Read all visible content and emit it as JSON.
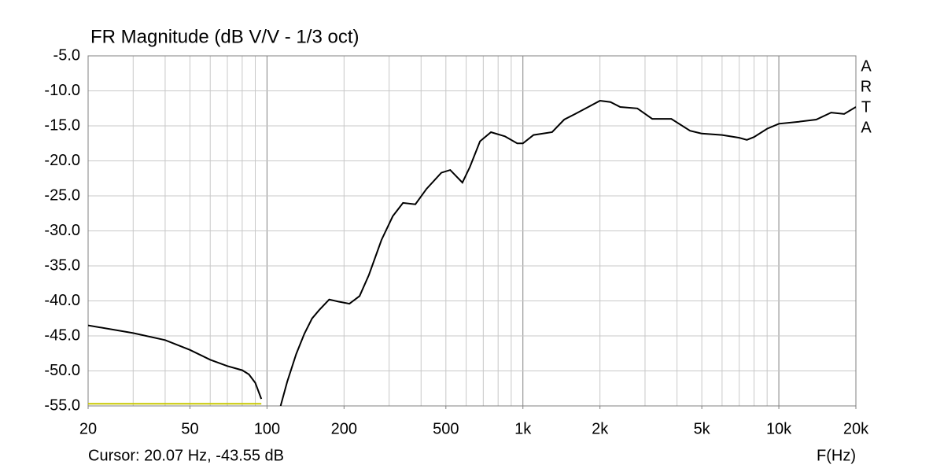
{
  "chart_data": {
    "type": "line",
    "title": "FR Magnitude (dB V/V - 1/3 oct)",
    "x_label": "F(Hz)",
    "annotation": "Cursor: 20.07 Hz, -43.55 dB",
    "side_label": [
      "A",
      "R",
      "T",
      "A"
    ],
    "x_scale": "log",
    "grid": true,
    "x": [
      20,
      30,
      40,
      50,
      60,
      70,
      80,
      85,
      90,
      95,
      100,
      113,
      120,
      130,
      140,
      150,
      160,
      175,
      190,
      210,
      230,
      250,
      280,
      310,
      340,
      380,
      420,
      480,
      520,
      580,
      620,
      680,
      750,
      850,
      950,
      1000,
      1100,
      1300,
      1450,
      1600,
      1800,
      2000,
      2200,
      2400,
      2800,
      3200,
      3800,
      4500,
      5000,
      6000,
      7000,
      7500,
      8000,
      9000,
      10000,
      12000,
      14000,
      16000,
      18000,
      20000
    ],
    "series": [
      {
        "color": "#000000",
        "values": [
          -43.5,
          -44.6,
          -45.6,
          -47.0,
          -48.4,
          -49.3,
          -49.9,
          -50.5,
          -51.7,
          -54.0,
          null,
          -55.0,
          -51.5,
          -47.6,
          -44.7,
          -42.5,
          -41.3,
          -39.8,
          -40.1,
          -40.4,
          -39.3,
          -36.3,
          -31.3,
          -27.9,
          -26.0,
          -26.2,
          -24.0,
          -21.7,
          -21.3,
          -23.1,
          -20.9,
          -17.2,
          -15.9,
          -16.5,
          -17.5,
          -17.5,
          -16.3,
          -15.9,
          -14.1,
          -13.3,
          -12.3,
          -11.4,
          -11.6,
          -12.3,
          -12.5,
          -14.0,
          -14.0,
          -15.7,
          -16.1,
          -16.3,
          -16.7,
          -17.0,
          -16.6,
          -15.4,
          -14.7,
          -14.4,
          -14.1,
          -13.1,
          -13.3,
          -12.3
        ]
      },
      {
        "color": "#c8c800",
        "values": [
          -54.7,
          -54.7,
          -54.7,
          -54.7,
          -54.7,
          -54.7,
          -54.7,
          -54.7,
          -54.7,
          -54.7,
          null,
          null,
          null,
          null,
          null,
          null,
          null,
          null,
          null,
          null,
          null,
          null,
          null,
          null,
          null,
          null,
          null,
          null,
          null,
          null,
          null,
          null,
          null,
          null,
          null,
          null,
          null,
          null,
          null,
          null,
          null,
          null,
          null,
          null,
          null,
          null,
          null,
          null,
          null,
          null,
          null,
          null,
          null,
          null,
          null,
          null,
          null,
          null,
          null,
          null
        ]
      }
    ],
    "xlim": [
      20,
      20000
    ],
    "xticks": [
      20,
      50,
      100,
      200,
      500,
      {
        "value": 1000,
        "label": "1k"
      },
      {
        "value": 2000,
        "label": "2k"
      },
      {
        "value": 5000,
        "label": "5k"
      },
      {
        "value": 10000,
        "label": "10k"
      },
      {
        "value": 20000,
        "label": "20k"
      }
    ],
    "ylim": [
      -55,
      -5
    ],
    "yticks": [
      {
        "value": -55,
        "label": "-55.0"
      },
      {
        "value": -50,
        "label": "-50.0"
      },
      {
        "value": -45,
        "label": "-45.0"
      },
      {
        "value": -40,
        "label": "-40.0"
      },
      {
        "value": -35,
        "label": "-35.0"
      },
      {
        "value": -30,
        "label": "-30.0"
      },
      {
        "value": -25,
        "label": "-25.0"
      },
      {
        "value": -20,
        "label": "-20.0"
      },
      {
        "value": -15,
        "label": "-15.0"
      },
      {
        "value": -10,
        "label": "-10.0"
      },
      {
        "value": -5,
        "label": "-5.0"
      }
    ]
  }
}
